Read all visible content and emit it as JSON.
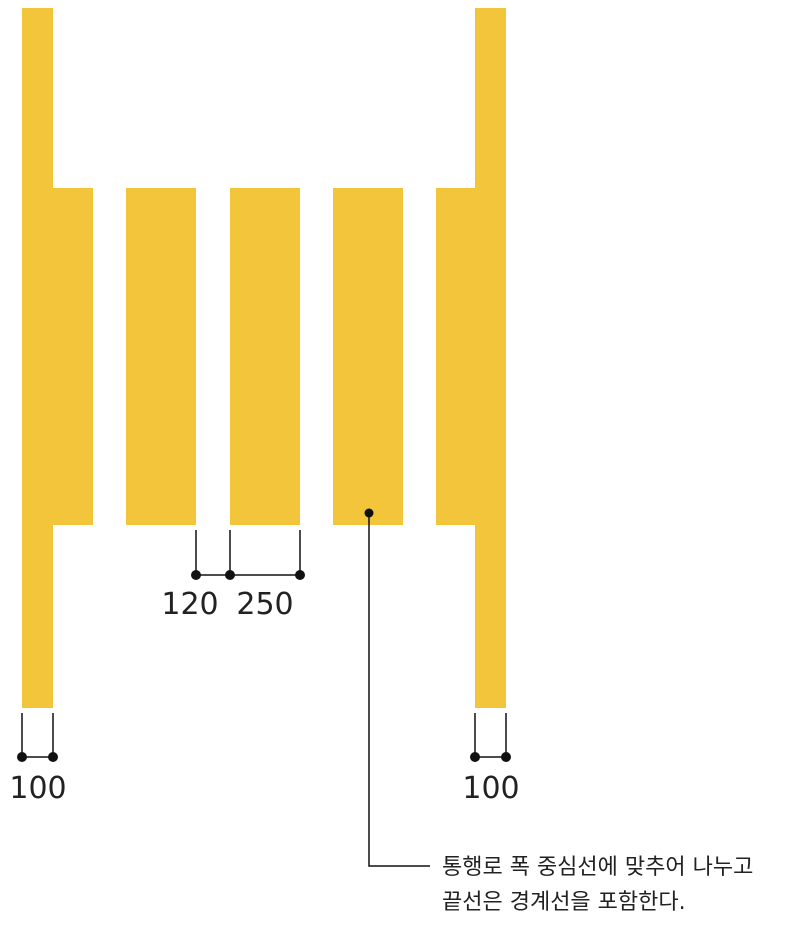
{
  "colors": {
    "marking": "#F2C53A",
    "line": "#111111",
    "background": "#FFFFFF"
  },
  "dimensions": {
    "gap_label": "120",
    "stripe_width_label": "250",
    "left_edge_line_label": "100",
    "right_edge_line_label": "100"
  },
  "note": {
    "line1": "통행로 폭 중심선에 맞추어 나누고",
    "line2": "끝선은 경계선을 포함한다."
  }
}
